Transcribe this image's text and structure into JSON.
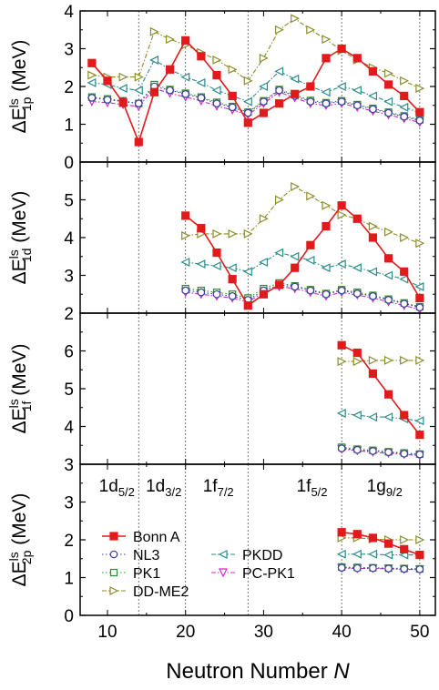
{
  "chart_data": {
    "type": "line",
    "xlabel": "Neutron Number N",
    "xlabel_parts": [
      "Neutron Number ",
      "N"
    ],
    "xlim": [
      6.5,
      52
    ],
    "x_ticks": [
      10,
      20,
      30,
      40,
      50
    ],
    "shell_lines_x": [
      14,
      20,
      28,
      40,
      50
    ],
    "shell_labels": [
      {
        "main": "1d",
        "sub": "5/2",
        "x": 11.2
      },
      {
        "main": "1d",
        "sub": "3/2",
        "x": 17.2
      },
      {
        "main": "1f",
        "sub": "7/2",
        "x": 24.2
      },
      {
        "main": "1f",
        "sub": "5/2",
        "x": 36.2
      },
      {
        "main": "1g",
        "sub": "9/2",
        "x": 45.5
      }
    ],
    "series_styles": [
      {
        "name": "Bonn A",
        "color": "#e31a1c",
        "marker": "square-filled",
        "dash": "solid"
      },
      {
        "name": "NL3",
        "color": "#3b3b9e",
        "marker": "circle-open",
        "dash": "dot"
      },
      {
        "name": "PK1",
        "color": "#2e8b2e",
        "marker": "square-open",
        "dash": "dot"
      },
      {
        "name": "DD-ME2",
        "color": "#8c8c2a",
        "marker": "triangle-right-open",
        "dash": "dashdot"
      },
      {
        "name": "PKDD",
        "color": "#2a8c8c",
        "marker": "triangle-left-open",
        "dash": "dashdot"
      },
      {
        "name": "PC-PK1",
        "color": "#d02ad0",
        "marker": "triangle-down-open",
        "dash": "dashdot"
      }
    ],
    "legend": {
      "placement": "lower-left of bottom panel",
      "column1": [
        "Bonn A",
        "NL3",
        "PK1",
        "DD-ME2"
      ],
      "column2": [
        "PKDD",
        "PC-PK1"
      ]
    },
    "panels": [
      {
        "ylabel_main": "ΔE",
        "ylabel_sup": "ls",
        "ylabel_sub": "1p",
        "ylabel_unit": " (MeV)",
        "ylim": [
          0,
          4
        ],
        "y_ticks": [
          0,
          1,
          2,
          3,
          4
        ],
        "series": [
          {
            "name": "Bonn A",
            "x": [
              8,
              10,
              12,
              14,
              16,
              18,
              20,
              22,
              24,
              26,
              28,
              30,
              32,
              34,
              36,
              38,
              40,
              42,
              44,
              46,
              48,
              50
            ],
            "values": [
              2.62,
              2.15,
              1.57,
              0.53,
              1.85,
              2.45,
              3.22,
              2.8,
              2.3,
              1.75,
              1.04,
              1.3,
              1.55,
              1.8,
              2.0,
              2.75,
              3.0,
              2.75,
              2.4,
              2.05,
              1.75,
              1.32
            ]
          },
          {
            "name": "NL3",
            "x": [
              8,
              10,
              12,
              14,
              16,
              18,
              20,
              22,
              24,
              26,
              28,
              30,
              32,
              34,
              36,
              38,
              40,
              42,
              44,
              46,
              48,
              50
            ],
            "values": [
              1.7,
              1.65,
              1.6,
              1.55,
              2.0,
              1.9,
              1.8,
              1.7,
              1.55,
              1.45,
              1.3,
              1.6,
              1.9,
              1.75,
              1.6,
              1.55,
              1.6,
              1.5,
              1.4,
              1.3,
              1.2,
              1.1
            ]
          },
          {
            "name": "PK1",
            "x": [
              8,
              10,
              12,
              14,
              16,
              18,
              20,
              22,
              24,
              26,
              28,
              30,
              32,
              34,
              36,
              38,
              40,
              42,
              44,
              46,
              48,
              50
            ],
            "values": [
              1.72,
              1.67,
              1.62,
              1.55,
              2.05,
              1.92,
              1.82,
              1.72,
              1.58,
              1.47,
              1.32,
              1.62,
              1.92,
              1.78,
              1.63,
              1.57,
              1.62,
              1.52,
              1.42,
              1.32,
              1.22,
              1.12
            ]
          },
          {
            "name": "DD-ME2",
            "x": [
              8,
              10,
              12,
              14,
              16,
              18,
              20,
              22,
              24,
              26,
              28,
              30,
              32,
              34,
              36,
              38,
              40,
              42,
              44,
              46,
              48,
              50
            ],
            "values": [
              2.3,
              2.25,
              2.25,
              2.25,
              3.45,
              3.25,
              3.1,
              2.9,
              2.7,
              2.45,
              2.15,
              2.75,
              3.5,
              3.8,
              3.5,
              3.25,
              2.95,
              2.7,
              2.5,
              2.35,
              2.15,
              1.95
            ]
          },
          {
            "name": "PKDD",
            "x": [
              8,
              10,
              12,
              14,
              16,
              18,
              20,
              22,
              24,
              26,
              28,
              30,
              32,
              34,
              36,
              38,
              40,
              42,
              44,
              46,
              48,
              50
            ],
            "values": [
              2.1,
              2.05,
              1.95,
              1.9,
              2.7,
              2.45,
              2.25,
              2.1,
              1.9,
              1.75,
              1.6,
              2.0,
              2.4,
              2.2,
              2.0,
              1.85,
              2.0,
              1.9,
              1.75,
              1.6,
              1.45,
              1.3
            ]
          },
          {
            "name": "PC-PK1",
            "x": [
              8,
              10,
              12,
              14,
              16,
              18,
              20,
              22,
              24,
              26,
              28,
              30,
              32,
              34,
              36,
              38,
              40,
              42,
              44,
              46,
              48,
              50
            ],
            "values": [
              1.6,
              1.57,
              1.52,
              1.47,
              1.95,
              1.82,
              1.72,
              1.62,
              1.48,
              1.38,
              1.25,
              1.55,
              1.85,
              1.7,
              1.55,
              1.5,
              1.55,
              1.45,
              1.35,
              1.25,
              1.15,
              1.05
            ]
          }
        ]
      },
      {
        "ylabel_main": "ΔE",
        "ylabel_sup": "ls",
        "ylabel_sub": "1d",
        "ylabel_unit": " (MeV)",
        "ylim": [
          2,
          6
        ],
        "y_ticks": [
          2,
          3,
          4,
          5
        ],
        "series": [
          {
            "name": "Bonn A",
            "x": [
              20,
              22,
              24,
              26,
              28,
              30,
              32,
              34,
              36,
              38,
              40,
              42,
              44,
              46,
              48,
              50
            ],
            "values": [
              4.58,
              4.25,
              3.6,
              2.9,
              2.2,
              2.5,
              2.75,
              3.2,
              3.8,
              4.3,
              4.85,
              4.5,
              4.0,
              3.45,
              3.1,
              2.4
            ]
          },
          {
            "name": "NL3",
            "x": [
              20,
              22,
              24,
              26,
              28,
              30,
              32,
              34,
              36,
              38,
              40,
              42,
              44,
              46,
              48,
              50
            ],
            "values": [
              2.6,
              2.55,
              2.5,
              2.45,
              2.35,
              2.6,
              2.75,
              2.7,
              2.6,
              2.5,
              2.6,
              2.52,
              2.45,
              2.35,
              2.25,
              2.15
            ]
          },
          {
            "name": "PK1",
            "x": [
              20,
              22,
              24,
              26,
              28,
              30,
              32,
              34,
              36,
              38,
              40,
              42,
              44,
              46,
              48,
              50
            ],
            "values": [
              2.65,
              2.6,
              2.55,
              2.5,
              2.4,
              2.65,
              2.8,
              2.72,
              2.62,
              2.52,
              2.62,
              2.55,
              2.47,
              2.37,
              2.27,
              2.17
            ]
          },
          {
            "name": "DD-ME2",
            "x": [
              20,
              22,
              24,
              26,
              28,
              30,
              32,
              34,
              36,
              38,
              40,
              42,
              44,
              46,
              48,
              50
            ],
            "values": [
              4.05,
              4.1,
              4.1,
              4.1,
              4.1,
              4.5,
              5.0,
              5.35,
              5.1,
              4.85,
              4.6,
              4.5,
              4.3,
              4.15,
              4.0,
              3.85
            ]
          },
          {
            "name": "PKDD",
            "x": [
              20,
              22,
              24,
              26,
              28,
              30,
              32,
              34,
              36,
              38,
              40,
              42,
              44,
              46,
              48,
              50
            ],
            "values": [
              3.35,
              3.3,
              3.25,
              3.2,
              3.1,
              3.35,
              3.6,
              3.5,
              3.4,
              3.2,
              3.3,
              3.2,
              3.1,
              3.0,
              2.9,
              2.7
            ]
          },
          {
            "name": "PC-PK1",
            "x": [
              20,
              22,
              24,
              26,
              28,
              30,
              32,
              34,
              36,
              38,
              40,
              42,
              44,
              46,
              48,
              50
            ],
            "values": [
              2.55,
              2.5,
              2.45,
              2.4,
              2.3,
              2.55,
              2.7,
              2.65,
              2.55,
              2.45,
              2.55,
              2.48,
              2.4,
              2.3,
              2.2,
              2.1
            ]
          }
        ]
      },
      {
        "ylabel_main": "ΔE",
        "ylabel_sup": "ls",
        "ylabel_sub": "1f",
        "ylabel_unit": " (MeV)",
        "ylim": [
          3,
          7
        ],
        "y_ticks": [
          3,
          4,
          5,
          6
        ],
        "series": [
          {
            "name": "Bonn A",
            "x": [
              40,
              42,
              44,
              46,
              48,
              50
            ],
            "values": [
              6.15,
              5.95,
              5.4,
              4.85,
              4.3,
              3.78
            ]
          },
          {
            "name": "NL3",
            "x": [
              40,
              42,
              44,
              46,
              48,
              50
            ],
            "values": [
              3.42,
              3.38,
              3.35,
              3.32,
              3.28,
              3.26
            ]
          },
          {
            "name": "PK1",
            "x": [
              40,
              42,
              44,
              46,
              48,
              50
            ],
            "values": [
              3.45,
              3.4,
              3.37,
              3.33,
              3.3,
              3.27
            ]
          },
          {
            "name": "DD-ME2",
            "x": [
              40,
              42,
              44,
              46,
              48,
              50
            ],
            "values": [
              5.72,
              5.72,
              5.75,
              5.75,
              5.75,
              5.75
            ]
          },
          {
            "name": "PKDD",
            "x": [
              40,
              42,
              44,
              46,
              48,
              50
            ],
            "values": [
              4.35,
              4.3,
              4.25,
              4.25,
              4.2,
              4.15
            ]
          },
          {
            "name": "PC-PK1",
            "x": [
              40,
              42,
              44,
              46,
              48,
              50
            ],
            "values": [
              3.4,
              3.36,
              3.32,
              3.29,
              3.26,
              3.23
            ]
          }
        ]
      },
      {
        "ylabel_main": "ΔE",
        "ylabel_sup": "ls",
        "ylabel_sub": "2p",
        "ylabel_unit": " (MeV)",
        "ylim": [
          0,
          4
        ],
        "y_ticks": [
          0,
          1,
          2,
          3
        ],
        "series": [
          {
            "name": "Bonn A",
            "x": [
              40,
              42,
              44,
              46,
              48,
              50
            ],
            "values": [
              2.2,
              2.15,
              2.05,
              1.9,
              1.75,
              1.6
            ]
          },
          {
            "name": "NL3",
            "x": [
              40,
              42,
              44,
              46,
              48,
              50
            ],
            "values": [
              1.26,
              1.25,
              1.25,
              1.24,
              1.23,
              1.22
            ]
          },
          {
            "name": "PK1",
            "x": [
              40,
              42,
              44,
              46,
              48,
              50
            ],
            "values": [
              1.28,
              1.27,
              1.26,
              1.25,
              1.24,
              1.23
            ]
          },
          {
            "name": "DD-ME2",
            "x": [
              40,
              42,
              44,
              46,
              48,
              50
            ],
            "values": [
              2.05,
              2.05,
              2.02,
              2.0,
              2.0,
              2.0
            ]
          },
          {
            "name": "PKDD",
            "x": [
              40,
              42,
              44,
              46,
              48,
              50
            ],
            "values": [
              1.62,
              1.62,
              1.62,
              1.6,
              1.6,
              1.6
            ]
          },
          {
            "name": "PC-PK1",
            "x": [
              40,
              42,
              44,
              46,
              48,
              50
            ],
            "values": [
              1.25,
              1.24,
              1.24,
              1.23,
              1.22,
              1.21
            ]
          }
        ]
      }
    ]
  }
}
